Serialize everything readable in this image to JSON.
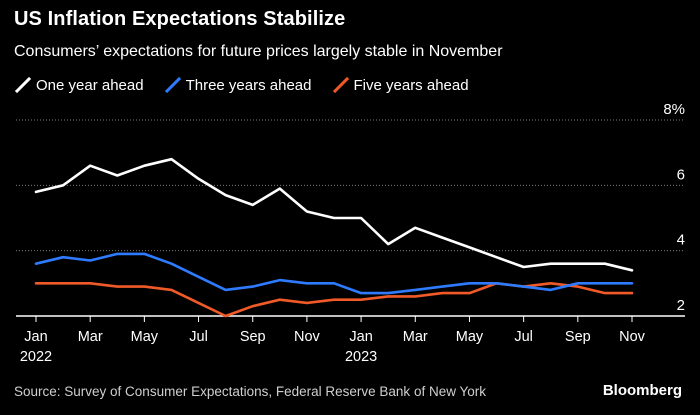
{
  "chart_data": {
    "type": "line",
    "title": "US Inflation Expectations Stabilize",
    "subtitle": "Consumers’ expectations for future prices largely stable in November",
    "unit_suffix": "%",
    "ylim": [
      2,
      8
    ],
    "yticks": [
      2,
      4,
      6,
      8
    ],
    "ytick_labels": [
      "2",
      "4",
      "6",
      "8%"
    ],
    "x": [
      0,
      1,
      2,
      3,
      4,
      5,
      6,
      7,
      8,
      9,
      10,
      11,
      12,
      13,
      14,
      15,
      16,
      17,
      18,
      19,
      20,
      21,
      22
    ],
    "xlim": [
      0,
      22
    ],
    "xticks": [
      {
        "x": 0,
        "label": "Jan",
        "sub": "2022"
      },
      {
        "x": 2,
        "label": "Mar",
        "sub": ""
      },
      {
        "x": 4,
        "label": "May",
        "sub": ""
      },
      {
        "x": 6,
        "label": "Jul",
        "sub": ""
      },
      {
        "x": 8,
        "label": "Sep",
        "sub": ""
      },
      {
        "x": 10,
        "label": "Nov",
        "sub": ""
      },
      {
        "x": 12,
        "label": "Jan",
        "sub": "2023"
      },
      {
        "x": 14,
        "label": "Mar",
        "sub": ""
      },
      {
        "x": 16,
        "label": "May",
        "sub": ""
      },
      {
        "x": 18,
        "label": "Jul",
        "sub": ""
      },
      {
        "x": 20,
        "label": "Sep",
        "sub": ""
      },
      {
        "x": 22,
        "label": "Nov",
        "sub": ""
      }
    ],
    "series": [
      {
        "name": "One year ahead",
        "color": "#ffffff",
        "values": [
          5.8,
          6.0,
          6.6,
          6.3,
          6.6,
          6.8,
          6.2,
          5.7,
          5.4,
          5.9,
          5.2,
          5.0,
          5.0,
          4.2,
          4.7,
          4.4,
          4.1,
          3.8,
          3.5,
          3.6,
          3.6,
          3.6,
          3.4
        ]
      },
      {
        "name": "Three years ahead",
        "color": "#2f7bff",
        "values": [
          3.6,
          3.8,
          3.7,
          3.9,
          3.9,
          3.6,
          3.2,
          2.8,
          2.9,
          3.1,
          3.0,
          3.0,
          2.7,
          2.7,
          2.8,
          2.9,
          3.0,
          3.0,
          2.9,
          2.8,
          3.0,
          3.0,
          3.0
        ]
      },
      {
        "name": "Five years ahead",
        "color": "#f05a28",
        "values": [
          3.0,
          3.0,
          3.0,
          2.9,
          2.9,
          2.8,
          2.4,
          2.0,
          2.3,
          2.5,
          2.4,
          2.5,
          2.5,
          2.6,
          2.6,
          2.7,
          2.7,
          3.0,
          2.9,
          3.0,
          2.9,
          2.7,
          2.7
        ]
      }
    ]
  },
  "source": "Source: Survey of Consumer Expectations, Federal Reserve Bank of New York",
  "brand": "Bloomberg"
}
